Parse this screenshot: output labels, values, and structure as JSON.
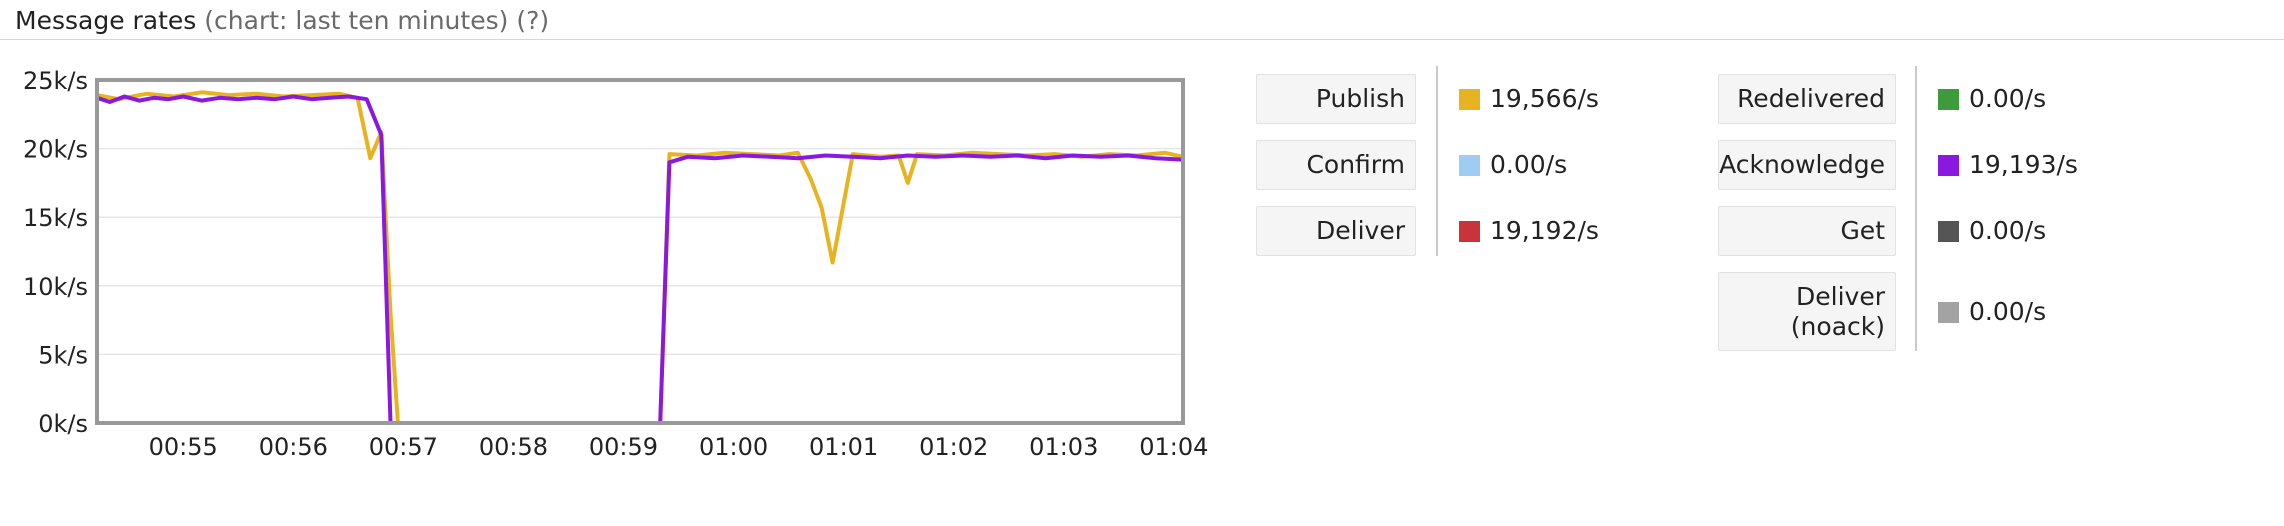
{
  "header": {
    "title": "Message rates",
    "subtitle": "(chart: last ten minutes)",
    "help": "(?)"
  },
  "chart_data": {
    "type": "line",
    "title": "",
    "xlabel": "",
    "ylabel": "",
    "ylim": [
      0,
      25000
    ],
    "yticks": [
      "0k/s",
      "5k/s",
      "10k/s",
      "15k/s",
      "20k/s",
      "25k/s"
    ],
    "ytick_values": [
      0,
      5000,
      10000,
      15000,
      20000,
      25000
    ],
    "xlim": [
      "00:54:13",
      "01:04:05"
    ],
    "xticks": [
      "00:55",
      "00:56",
      "00:57",
      "00:58",
      "00:59",
      "01:00",
      "01:01",
      "01:02",
      "01:03",
      "01:04"
    ],
    "grid": true,
    "series": [
      {
        "color": "#e8b321",
        "x": [
          "00:54:13",
          "00:54:25",
          "00:54:40",
          "00:54:55",
          "00:55:10",
          "00:55:25",
          "00:55:40",
          "00:55:55",
          "00:56:10",
          "00:56:25",
          "00:56:35",
          "00:56:42",
          "00:56:48",
          "00:56:53",
          "00:56:57",
          "00:56:58",
          "00:59:20",
          "00:59:25",
          "00:59:40",
          "00:59:55",
          "01:00:10",
          "01:00:25",
          "01:00:35",
          "01:00:42",
          "01:00:48",
          "01:00:54",
          "01:01:05",
          "01:01:20",
          "01:01:30",
          "01:01:35",
          "01:01:40",
          "01:01:55",
          "01:02:10",
          "01:02:25",
          "01:02:40",
          "01:02:55",
          "01:03:10",
          "01:03:25",
          "01:03:40",
          "01:03:55",
          "01:04:05"
        ],
        "values": [
          23900,
          23600,
          24000,
          23800,
          24100,
          23900,
          24000,
          23800,
          23900,
          24000,
          23700,
          19300,
          21200,
          8000,
          0,
          0,
          0,
          19600,
          19500,
          19700,
          19600,
          19500,
          19700,
          17800,
          15700,
          11700,
          19600,
          19400,
          19500,
          17500,
          19600,
          19500,
          19700,
          19600,
          19500,
          19600,
          19400,
          19600,
          19500,
          19700,
          19400
        ]
      },
      {
        "color": "#8a19e0",
        "x": [
          "00:54:13",
          "00:54:20",
          "00:54:28",
          "00:54:36",
          "00:54:44",
          "00:54:52",
          "00:55:00",
          "00:55:10",
          "00:55:20",
          "00:55:30",
          "00:55:40",
          "00:55:50",
          "00:56:00",
          "00:56:10",
          "00:56:20",
          "00:56:30",
          "00:56:40",
          "00:56:48",
          "00:56:53",
          "00:56:58",
          "00:59:20",
          "00:59:25",
          "00:59:35",
          "00:59:50",
          "01:00:05",
          "01:00:20",
          "01:00:35",
          "01:00:50",
          "01:01:05",
          "01:01:20",
          "01:01:35",
          "01:01:50",
          "01:02:05",
          "01:02:20",
          "01:02:35",
          "01:02:50",
          "01:03:05",
          "01:03:20",
          "01:03:35",
          "01:03:50",
          "01:04:05"
        ],
        "values": [
          23700,
          23400,
          23800,
          23500,
          23700,
          23600,
          23800,
          23500,
          23700,
          23600,
          23700,
          23600,
          23800,
          23600,
          23700,
          23800,
          23600,
          21000,
          0,
          0,
          0,
          19000,
          19400,
          19300,
          19500,
          19400,
          19300,
          19500,
          19400,
          19300,
          19500,
          19400,
          19500,
          19400,
          19500,
          19300,
          19500,
          19400,
          19500,
          19300,
          19200
        ]
      }
    ]
  },
  "stats": {
    "left": [
      {
        "label": "Publish",
        "value": "19,566/s",
        "color": "#e8b321"
      },
      {
        "label": "Confirm",
        "value": "0.00/s",
        "color": "#9fcdf1"
      },
      {
        "label": "Deliver",
        "value": "19,192/s",
        "color": "#c9343a"
      }
    ],
    "right": [
      {
        "label": "Redelivered",
        "value": "0.00/s",
        "color": "#3e9b3b"
      },
      {
        "label": "Acknowledge",
        "value": "19,193/s",
        "color": "#8a19e0"
      },
      {
        "label": "Get",
        "value": "0.00/s",
        "color": "#555555"
      },
      {
        "label": "Deliver\n(noack)",
        "value": "0.00/s",
        "color": "#a3a3a3"
      }
    ]
  }
}
